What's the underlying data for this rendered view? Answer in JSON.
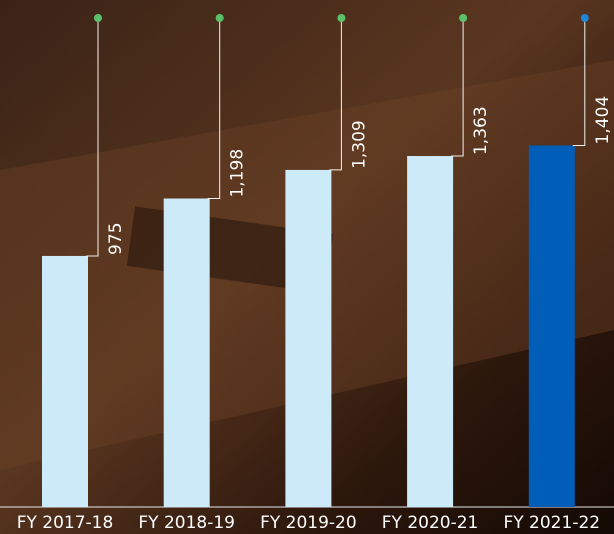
{
  "chart_data": {
    "type": "bar",
    "categories": [
      "FY 2017-18",
      "FY 2018-19",
      "FY 2019-20",
      "FY 2020-21",
      "FY 2021-22"
    ],
    "values": [
      975,
      1198,
      1309,
      1363,
      1404
    ],
    "value_labels": [
      "975",
      "1,198",
      "1,309",
      "1,363",
      "1,404"
    ],
    "colors": [
      "#cdeaf9",
      "#cdeaf9",
      "#cdeaf9",
      "#cdeaf9",
      "#005eb8"
    ],
    "marker_colors": [
      "#5cc06a",
      "#5cc06a",
      "#5cc06a",
      "#5cc06a",
      "#1e88d8"
    ]
  }
}
